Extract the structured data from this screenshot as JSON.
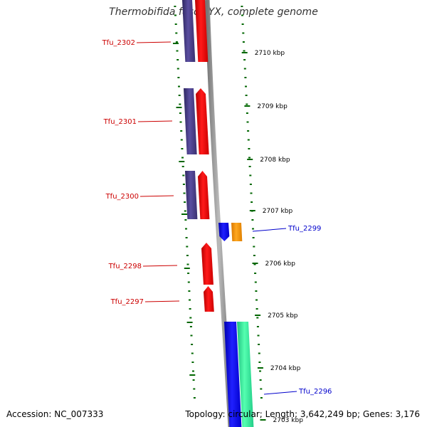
{
  "title": "Thermobifida fusca YX, complete genome",
  "footer": {
    "accession": "Accession: NC_007333",
    "summary": "Topology: circular; Length: 3,642,249 bp; Genes: 3,176"
  },
  "colors": {
    "forward_cds": "#ff0000",
    "cog_track": "#4b3f8a",
    "reverse_cds": "#0000ff",
    "orange_feature": "#ff9900",
    "teal_feature": "#33ee99",
    "tick_green": "#006600",
    "label_red": "#cc0000",
    "label_blue": "#0000cc",
    "backbone": "#888888"
  },
  "tick_labels": [
    "2710 kbp",
    "2709 kbp",
    "2708 kbp",
    "2707 kbp",
    "2706 kbp",
    "2705 kbp",
    "2704 kbp",
    "2703 kbp"
  ],
  "genes_left": [
    "Tfu_2302",
    "Tfu_2301",
    "Tfu_2300",
    "Tfu_2298",
    "Tfu_2297"
  ],
  "genes_right": [
    "Tfu_2299",
    "Tfu_2296"
  ]
}
